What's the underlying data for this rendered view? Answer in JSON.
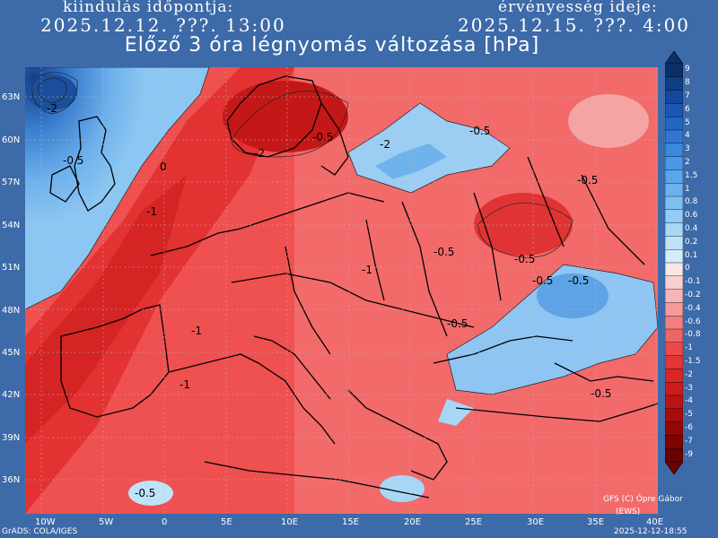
{
  "header": {
    "init_label": "kiindulás időpontja:",
    "init_time": "2025.12.12. ???. 13:00",
    "valid_label": "érvényesség ideje:",
    "valid_time": "2025.12.15. ???. 4:00"
  },
  "title": "Előző 3 óra légnyomás változása [hPa]",
  "latitude_labels": [
    "63N",
    "60N",
    "57N",
    "54N",
    "51N",
    "48N",
    "45N",
    "42N",
    "39N",
    "36N"
  ],
  "longitude_labels": [
    "10W",
    "5W",
    "0",
    "5E",
    "10E",
    "15E",
    "20E",
    "25E",
    "30E",
    "35E",
    "40E"
  ],
  "colorbar": {
    "labels": [
      "9",
      "8",
      "7",
      "6",
      "5",
      "4",
      "3",
      "2",
      "1.5",
      "1",
      "0.8",
      "0.6",
      "0.4",
      "0.2",
      "0.1",
      "0",
      "-0.1",
      "-0.2",
      "-0.4",
      "-0.6",
      "-0.8",
      "-1",
      "-1.5",
      "-2",
      "-3",
      "-4",
      "-5",
      "-6",
      "-7",
      "-9"
    ],
    "colors": [
      "#0b2f6b",
      "#0f3d86",
      "#13489c",
      "#1a56b2",
      "#2466c4",
      "#2f78d2",
      "#3b89dd",
      "#4a98e5",
      "#5aa6ea",
      "#6cb3ee",
      "#7fc0f1",
      "#93ccf4",
      "#a8d8f6",
      "#bee3f8",
      "#d3edfa",
      "#f6e6e6",
      "#f8cfcf",
      "#f7b5b5",
      "#f59a9a",
      "#f27f7f",
      "#ef6565",
      "#ea4a4a",
      "#e33535",
      "#d92626",
      "#cc1c1c",
      "#bb1313",
      "#a80c0c",
      "#940707",
      "#7e0404",
      "#6a0202"
    ]
  },
  "map_contour_labels": [
    "-2",
    "-0.5",
    "0",
    "-0.5",
    "-2",
    "-2",
    "-1",
    "-0.5",
    "-1",
    "-0.5",
    "-1",
    "-0.5",
    "-0.5",
    "-0.5",
    "-0.5",
    "-1",
    "-0.5",
    "-0.5",
    "-0.5"
  ],
  "footer": {
    "left": "GrADS: COLA/IGES",
    "right": "2025-12-12-18:55",
    "credit_line1": "GFS (C) Ópre Gábor",
    "credit_line2": "(EWS)"
  }
}
